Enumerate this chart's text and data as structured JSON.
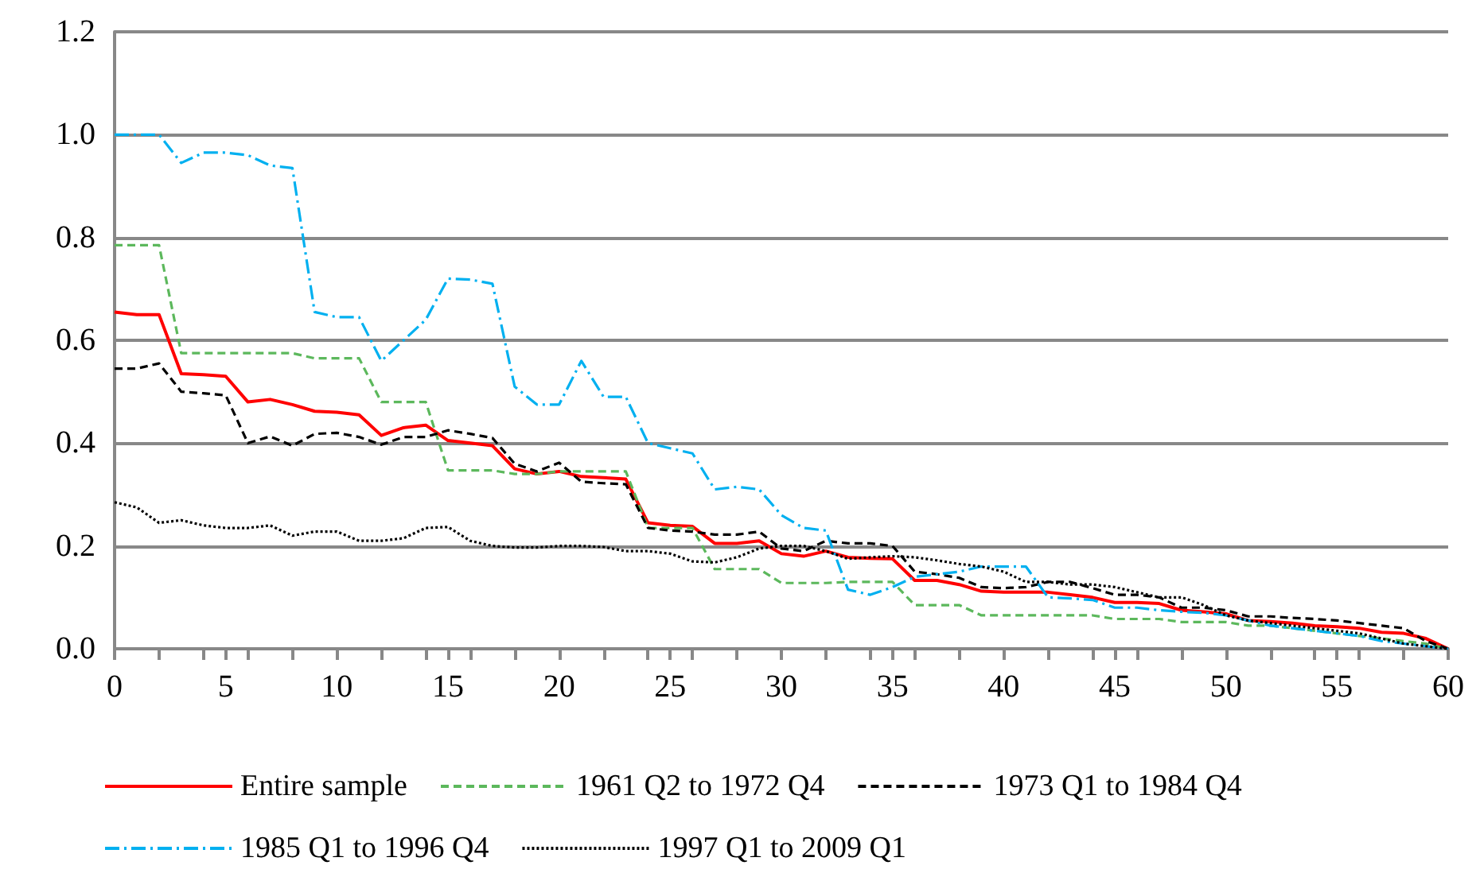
{
  "chart_data": {
    "type": "line",
    "x": [
      0,
      1,
      2,
      3,
      4,
      5,
      6,
      7,
      8,
      9,
      10,
      11,
      12,
      13,
      14,
      15,
      16,
      17,
      18,
      19,
      20,
      21,
      22,
      23,
      24,
      25,
      26,
      27,
      28,
      29,
      30,
      31,
      32,
      33,
      34,
      35,
      36,
      37,
      38,
      39,
      40,
      41,
      42,
      43,
      44,
      45,
      46,
      47,
      48,
      49,
      50,
      51,
      52,
      53,
      54,
      55,
      56,
      57,
      58,
      59,
      60
    ],
    "xlim": [
      0,
      60
    ],
    "xticks": [
      0,
      5,
      10,
      15,
      20,
      25,
      30,
      35,
      40,
      45,
      50,
      55,
      60
    ],
    "ylim": [
      0,
      1.2
    ],
    "yticks": [
      {
        "value": 0,
        "label": "0.0"
      },
      {
        "value": 0.2,
        "label": "0.2"
      },
      {
        "value": 0.4,
        "label": "0.4"
      },
      {
        "value": 0.6,
        "label": "0.6"
      },
      {
        "value": 0.8,
        "label": "0.8"
      },
      {
        "value": 1,
        "label": "1.0"
      },
      {
        "value": 1.2,
        "label": "1.2"
      }
    ],
    "grid": "y",
    "legend": "bottom",
    "marker": "none",
    "series": [
      {
        "name": "Entire sample",
        "color": "#ff0000",
        "line_style": "solid",
        "values": [
          0.655,
          0.65,
          0.65,
          0.535,
          0.533,
          0.53,
          0.48,
          0.485,
          0.475,
          0.462,
          0.46,
          0.455,
          0.415,
          0.43,
          0.435,
          0.405,
          0.4,
          0.395,
          0.35,
          0.34,
          0.345,
          0.335,
          0.333,
          0.33,
          0.245,
          0.24,
          0.238,
          0.205,
          0.205,
          0.21,
          0.185,
          0.18,
          0.19,
          0.178,
          0.176,
          0.175,
          0.133,
          0.133,
          0.125,
          0.112,
          0.11,
          0.11,
          0.11,
          0.105,
          0.1,
          0.09,
          0.09,
          0.088,
          0.075,
          0.072,
          0.068,
          0.055,
          0.053,
          0.05,
          0.045,
          0.043,
          0.04,
          0.032,
          0.03,
          0.02,
          0
        ]
      },
      {
        "name": "1961 Q2 to 1972 Q4",
        "color": "#5cb85c",
        "line_style": "dashed",
        "values": [
          0.785,
          0.785,
          0.785,
          0.575,
          0.575,
          0.575,
          0.575,
          0.575,
          0.575,
          0.565,
          0.565,
          0.565,
          0.48,
          0.48,
          0.48,
          0.347,
          0.347,
          0.347,
          0.34,
          0.34,
          0.345,
          0.345,
          0.345,
          0.345,
          0.235,
          0.235,
          0.235,
          0.155,
          0.155,
          0.155,
          0.128,
          0.128,
          0.128,
          0.13,
          0.13,
          0.13,
          0.085,
          0.085,
          0.085,
          0.065,
          0.065,
          0.065,
          0.065,
          0.065,
          0.065,
          0.058,
          0.058,
          0.058,
          0.052,
          0.052,
          0.052,
          0.045,
          0.045,
          0.04,
          0.035,
          0.03,
          0.025,
          0.02,
          0.015,
          0.01,
          0
        ]
      },
      {
        "name": "1973 Q1 to 1984 Q4",
        "color": "#000000",
        "line_style": "dashed",
        "values": [
          0.545,
          0.545,
          0.555,
          0.5,
          0.497,
          0.493,
          0.4,
          0.413,
          0.395,
          0.418,
          0.42,
          0.412,
          0.397,
          0.412,
          0.412,
          0.425,
          0.418,
          0.41,
          0.36,
          0.345,
          0.362,
          0.325,
          0.322,
          0.32,
          0.235,
          0.23,
          0.228,
          0.222,
          0.222,
          0.228,
          0.195,
          0.19,
          0.21,
          0.205,
          0.205,
          0.2,
          0.15,
          0.145,
          0.138,
          0.12,
          0.118,
          0.12,
          0.13,
          0.13,
          0.118,
          0.105,
          0.105,
          0.1,
          0.08,
          0.08,
          0.075,
          0.063,
          0.063,
          0.06,
          0.058,
          0.055,
          0.05,
          0.045,
          0.04,
          0.015,
          0
        ]
      },
      {
        "name": "1985 Q1 to 1996 Q4",
        "color": "#00b0f0",
        "line_style": "dashdot",
        "values": [
          1,
          1,
          1,
          0.945,
          0.965,
          0.965,
          0.96,
          0.94,
          0.935,
          0.655,
          0.645,
          0.645,
          0.56,
          0.6,
          0.64,
          0.72,
          0.718,
          0.71,
          0.51,
          0.475,
          0.475,
          0.56,
          0.49,
          0.49,
          0.4,
          0.39,
          0.38,
          0.31,
          0.315,
          0.31,
          0.26,
          0.235,
          0.23,
          0.115,
          0.105,
          0.12,
          0.14,
          0.145,
          0.15,
          0.16,
          0.16,
          0.16,
          0.1,
          0.098,
          0.095,
          0.08,
          0.08,
          0.075,
          0.072,
          0.07,
          0.065,
          0.055,
          0.045,
          0.04,
          0.035,
          0.03,
          0.025,
          0.015,
          0.01,
          0.005,
          0
        ]
      },
      {
        "name": "1997 Q1 to 2009 Q1",
        "color": "#000000",
        "line_style": "dotted",
        "values": [
          0.285,
          0.275,
          0.245,
          0.25,
          0.24,
          0.235,
          0.235,
          0.24,
          0.22,
          0.228,
          0.228,
          0.21,
          0.21,
          0.215,
          0.235,
          0.237,
          0.21,
          0.2,
          0.197,
          0.197,
          0.2,
          0.2,
          0.198,
          0.19,
          0.19,
          0.185,
          0.17,
          0.168,
          0.178,
          0.195,
          0.2,
          0.2,
          0.19,
          0.175,
          0.178,
          0.18,
          0.178,
          0.172,
          0.165,
          0.16,
          0.15,
          0.13,
          0.13,
          0.125,
          0.125,
          0.12,
          0.11,
          0.1,
          0.1,
          0.085,
          0.065,
          0.055,
          0.05,
          0.045,
          0.04,
          0.035,
          0.03,
          0.02,
          0.01,
          0.005,
          0
        ]
      }
    ]
  }
}
